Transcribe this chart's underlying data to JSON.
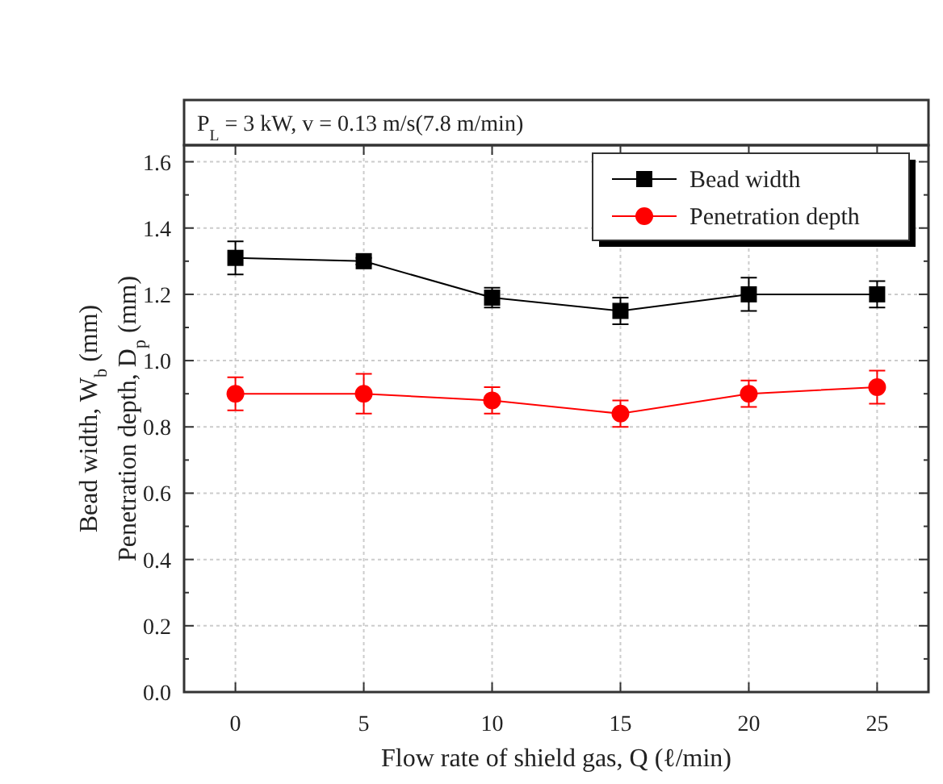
{
  "chart_data": {
    "type": "line",
    "title": "P$_{L}$ = 3 kW, v = 0.13 m/s(7.8 m/min)",
    "xlabel": "Flow rate of shield gas, Q (ℓ/min)",
    "ylabel": "Bead width, W$_{b}$ (mm)\nPenetration depth, D$_{p}$ (mm)",
    "x": [
      0,
      5,
      10,
      15,
      20,
      25
    ],
    "series": [
      {
        "name": "Bead width",
        "color": "#000000",
        "marker": "square",
        "values": [
          1.31,
          1.3,
          1.19,
          1.15,
          1.2,
          1.2
        ],
        "errors": [
          0.05,
          0.01,
          0.03,
          0.04,
          0.05,
          0.04
        ]
      },
      {
        "name": "Penetration depth",
        "color": "#ff0000",
        "marker": "circle",
        "values": [
          0.9,
          0.9,
          0.88,
          0.84,
          0.9,
          0.92
        ],
        "errors": [
          0.05,
          0.06,
          0.04,
          0.04,
          0.04,
          0.05
        ]
      }
    ],
    "xlim": [
      -2,
      27
    ],
    "xticks": [
      0,
      5,
      10,
      15,
      20,
      25
    ],
    "ylim": [
      0,
      1.65
    ],
    "yticks": [
      {
        "value": 0,
        "label": "0.0"
      },
      {
        "value": 0.2,
        "label": "0.2"
      },
      {
        "value": 0.4,
        "label": "0.4"
      },
      {
        "value": 0.6,
        "label": "0.6"
      },
      {
        "value": 0.8,
        "label": "0.8"
      },
      {
        "value": 1,
        "label": "1.0"
      },
      {
        "value": 1.2,
        "label": "1.2"
      },
      {
        "value": 1.4,
        "label": "1.4"
      },
      {
        "value": 1.6,
        "label": "1.6"
      }
    ],
    "grid": true,
    "legend": "top right",
    "line_style": "solid"
  }
}
